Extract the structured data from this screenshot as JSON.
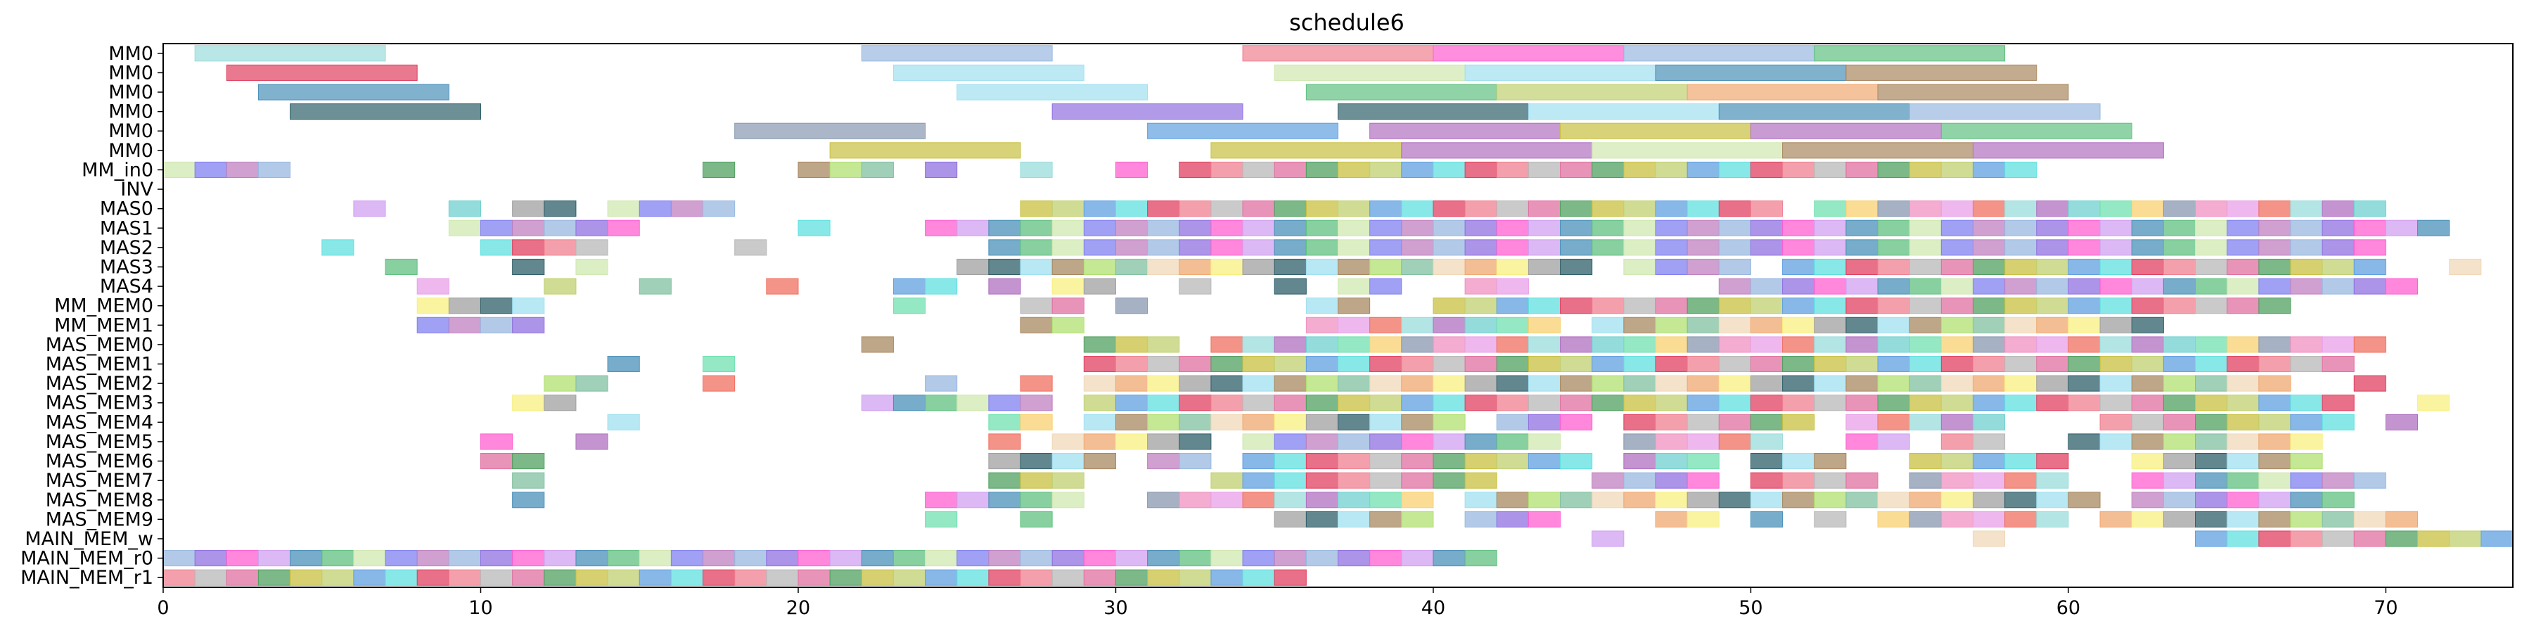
{
  "chart_data": {
    "type": "gantt",
    "title": "schedule6",
    "xlabel": "",
    "ylabel": "",
    "xlim": [
      0,
      74
    ],
    "xticks": [
      0,
      10,
      20,
      30,
      40,
      50,
      60,
      70
    ],
    "rows": [
      "MM0",
      "MM0",
      "MM0",
      "MM0",
      "MM0",
      "MM0",
      "MM_in0",
      "INV",
      "MAS0",
      "MAS1",
      "MAS2",
      "MAS3",
      "MAS4",
      "MM_MEM0",
      "MM_MEM1",
      "MAS_MEM0",
      "MAS_MEM1",
      "MAS_MEM2",
      "MAS_MEM3",
      "MAS_MEM4",
      "MAS_MEM5",
      "MAS_MEM6",
      "MAS_MEM7",
      "MAS_MEM8",
      "MAS_MEM9",
      "MAIN_MEM_w",
      "MAIN_MEM_r0",
      "MAIN_MEM_r1"
    ],
    "palette": [
      "#9bdcdc",
      "#e04060",
      "#4a90b8",
      "#2f5f6a",
      "#8898b0",
      "#c8c040",
      "#98b8e0",
      "#f0d8b8",
      "#b070c0",
      "#f08090",
      "#60c080",
      "#a0e0f0",
      "#f090c0",
      "#c0d070",
      "#9070e0",
      "#f0a870",
      "#70d0d0",
      "#b8b8b8",
      "#d0e8b0",
      "#a88860",
      "#e8a0e8",
      "#60a0e0",
      "#ff60d0",
      "#f8f080"
    ],
    "bars": [
      {
        "row": 0,
        "start": 1,
        "end": 7,
        "c": 0
      },
      {
        "row": 0,
        "start": 22,
        "end": 28,
        "c": 6
      },
      {
        "row": 0,
        "start": 34,
        "end": 40,
        "c": 9
      },
      {
        "row": 0,
        "start": 40,
        "end": 46,
        "c": 22
      },
      {
        "row": 0,
        "start": 46,
        "end": 52,
        "c": 6
      },
      {
        "row": 0,
        "start": 52,
        "end": 58,
        "c": 10
      },
      {
        "row": 1,
        "start": 2,
        "end": 8,
        "c": 1
      },
      {
        "row": 1,
        "start": 23,
        "end": 29,
        "c": 11
      },
      {
        "row": 1,
        "start": 35,
        "end": 41,
        "c": 18
      },
      {
        "row": 1,
        "start": 41,
        "end": 47,
        "c": 11
      },
      {
        "row": 1,
        "start": 47,
        "end": 53,
        "c": 2
      },
      {
        "row": 1,
        "start": 53,
        "end": 59,
        "c": 19
      },
      {
        "row": 2,
        "start": 3,
        "end": 9,
        "c": 2
      },
      {
        "row": 2,
        "start": 25,
        "end": 31,
        "c": 11
      },
      {
        "row": 2,
        "start": 36,
        "end": 42,
        "c": 10
      },
      {
        "row": 2,
        "start": 42,
        "end": 48,
        "c": 13
      },
      {
        "row": 2,
        "start": 48,
        "end": 54,
        "c": 15
      },
      {
        "row": 2,
        "start": 54,
        "end": 60,
        "c": 19
      },
      {
        "row": 3,
        "start": 4,
        "end": 10,
        "c": 3
      },
      {
        "row": 3,
        "start": 28,
        "end": 34,
        "c": 14
      },
      {
        "row": 3,
        "start": 37,
        "end": 43,
        "c": 3
      },
      {
        "row": 3,
        "start": 43,
        "end": 49,
        "c": 11
      },
      {
        "row": 3,
        "start": 49,
        "end": 55,
        "c": 2
      },
      {
        "row": 3,
        "start": 55,
        "end": 61,
        "c": 6
      },
      {
        "row": 4,
        "start": 18,
        "end": 24,
        "c": 4
      },
      {
        "row": 4,
        "start": 31,
        "end": 37,
        "c": 21
      },
      {
        "row": 4,
        "start": 38,
        "end": 44,
        "c": 8
      },
      {
        "row": 4,
        "start": 44,
        "end": 50,
        "c": 5
      },
      {
        "row": 4,
        "start": 50,
        "end": 56,
        "c": 8
      },
      {
        "row": 4,
        "start": 56,
        "end": 62,
        "c": 10
      },
      {
        "row": 5,
        "start": 21,
        "end": 27,
        "c": 5
      },
      {
        "row": 5,
        "start": 33,
        "end": 39,
        "c": 5
      },
      {
        "row": 5,
        "start": 39,
        "end": 45,
        "c": 8
      },
      {
        "row": 5,
        "start": 45,
        "end": 51,
        "c": 18
      },
      {
        "row": 5,
        "start": 51,
        "end": 57,
        "c": 19
      },
      {
        "row": 5,
        "start": 57,
        "end": 63,
        "c": 8
      }
    ],
    "dense_rows": [
      {
        "row": 6,
        "cells": [
          0,
          1,
          2,
          3,
          17,
          20,
          21,
          22,
          24,
          27,
          30,
          32,
          33,
          34,
          35,
          36,
          37,
          38,
          39,
          40,
          41,
          42,
          43,
          44,
          45,
          46,
          47,
          48,
          49,
          50,
          51,
          52,
          53,
          54,
          55,
          56,
          57,
          58
        ]
      },
      {
        "row": 8,
        "cells": [
          6,
          9,
          11,
          12,
          14,
          15,
          16,
          17,
          27,
          28,
          29,
          30,
          31,
          32,
          33,
          34,
          35,
          36,
          37,
          38,
          39,
          40,
          41,
          42,
          43,
          44,
          45,
          46,
          47,
          48,
          49,
          50,
          52,
          53,
          54,
          55,
          56,
          57,
          58,
          59,
          60,
          61,
          62,
          63,
          64,
          65,
          66,
          67,
          68,
          69
        ]
      },
      {
        "row": 9,
        "cells": [
          9,
          10,
          11,
          12,
          13,
          14,
          20,
          24,
          25,
          26,
          27,
          28,
          29,
          30,
          31,
          32,
          33,
          34,
          35,
          36,
          37,
          38,
          39,
          40,
          41,
          42,
          43,
          44,
          45,
          46,
          47,
          48,
          49,
          50,
          51,
          52,
          53,
          54,
          55,
          56,
          57,
          58,
          59,
          60,
          61,
          62,
          63,
          64,
          65,
          66,
          67,
          68,
          69,
          70,
          71
        ]
      },
      {
        "row": 10,
        "cells": [
          5,
          10,
          11,
          12,
          13,
          18,
          26,
          27,
          28,
          29,
          30,
          31,
          32,
          33,
          34,
          35,
          36,
          37,
          38,
          39,
          40,
          41,
          42,
          43,
          44,
          45,
          46,
          47,
          48,
          49,
          50,
          51,
          52,
          53,
          54,
          55,
          56,
          57,
          58,
          59,
          60,
          61,
          62,
          63,
          64,
          65,
          66,
          67,
          68,
          69
        ]
      },
      {
        "row": 11,
        "cells": [
          7,
          11,
          13,
          25,
          26,
          27,
          28,
          29,
          30,
          31,
          32,
          33,
          34,
          35,
          36,
          37,
          38,
          39,
          40,
          41,
          42,
          43,
          44,
          46,
          47,
          48,
          49,
          51,
          52,
          53,
          54,
          55,
          56,
          57,
          58,
          59,
          60,
          61,
          62,
          63,
          64,
          65,
          66,
          67,
          68,
          69,
          72
        ]
      },
      {
        "row": 12,
        "cells": [
          8,
          12,
          15,
          19,
          23,
          24,
          26,
          28,
          29,
          32,
          35,
          37,
          38,
          41,
          42,
          49,
          50,
          51,
          52,
          53,
          54,
          55,
          56,
          57,
          58,
          59,
          60,
          61,
          62,
          63,
          64,
          65,
          66,
          67,
          68,
          69,
          70
        ]
      },
      {
        "row": 13,
        "cells": [
          8,
          9,
          10,
          11,
          23,
          27,
          28,
          30,
          36,
          37,
          40,
          41,
          42,
          43,
          44,
          45,
          46,
          47,
          48,
          49,
          50,
          51,
          52,
          53,
          54,
          55,
          56,
          57,
          58,
          59,
          60,
          61,
          62,
          63,
          64,
          65,
          66
        ]
      },
      {
        "row": 14,
        "cells": [
          8,
          9,
          10,
          11,
          27,
          28,
          36,
          37,
          38,
          39,
          40,
          41,
          42,
          43,
          45,
          46,
          47,
          48,
          49,
          50,
          51,
          52,
          53,
          54,
          55,
          56,
          57,
          58,
          59,
          60,
          61,
          62
        ]
      },
      {
        "row": 15,
        "cells": [
          22,
          29,
          30,
          31,
          33,
          34,
          35,
          36,
          37,
          38,
          39,
          40,
          41,
          42,
          43,
          44,
          45,
          46,
          47,
          48,
          49,
          50,
          51,
          52,
          53,
          54,
          55,
          56,
          57,
          58,
          59,
          60,
          61,
          62,
          63,
          64,
          65,
          66,
          67,
          68,
          69
        ]
      },
      {
        "row": 16,
        "cells": [
          14,
          17,
          29,
          30,
          31,
          32,
          33,
          34,
          35,
          36,
          37,
          38,
          39,
          40,
          41,
          42,
          43,
          44,
          45,
          46,
          47,
          48,
          49,
          50,
          51,
          52,
          53,
          54,
          55,
          56,
          57,
          58,
          59,
          60,
          61,
          62,
          63,
          64,
          65,
          66,
          67,
          68
        ]
      },
      {
        "row": 17,
        "cells": [
          12,
          13,
          17,
          24,
          27,
          29,
          30,
          31,
          32,
          33,
          34,
          35,
          36,
          37,
          38,
          39,
          40,
          41,
          42,
          43,
          44,
          45,
          46,
          47,
          48,
          49,
          50,
          51,
          52,
          53,
          54,
          55,
          56,
          57,
          58,
          59,
          60,
          61,
          62,
          63,
          64,
          65,
          66,
          69
        ]
      },
      {
        "row": 18,
        "cells": [
          11,
          12,
          22,
          23,
          24,
          25,
          26,
          27,
          29,
          30,
          31,
          32,
          33,
          34,
          35,
          36,
          37,
          38,
          39,
          40,
          41,
          42,
          43,
          44,
          45,
          46,
          47,
          48,
          49,
          50,
          51,
          52,
          53,
          54,
          55,
          56,
          57,
          58,
          59,
          60,
          61,
          62,
          63,
          64,
          65,
          66,
          67,
          68,
          71
        ]
      },
      {
        "row": 19,
        "cells": [
          14,
          26,
          27,
          29,
          30,
          31,
          32,
          33,
          34,
          35,
          36,
          37,
          38,
          39,
          40,
          42,
          43,
          44,
          46,
          47,
          48,
          49,
          50,
          51,
          53,
          54,
          55,
          56,
          57,
          61,
          62,
          63,
          64,
          65,
          66,
          67,
          68,
          70
        ]
      },
      {
        "row": 20,
        "cells": [
          10,
          13,
          26,
          28,
          29,
          30,
          31,
          32,
          34,
          35,
          36,
          37,
          38,
          39,
          40,
          41,
          42,
          43,
          46,
          47,
          48,
          49,
          50,
          53,
          54,
          56,
          57,
          60,
          61,
          62,
          63,
          64,
          65,
          66,
          67
        ]
      },
      {
        "row": 21,
        "cells": [
          10,
          11,
          26,
          27,
          28,
          29,
          31,
          32,
          34,
          35,
          36,
          37,
          38,
          39,
          40,
          41,
          42,
          43,
          44,
          46,
          47,
          48,
          50,
          51,
          52,
          55,
          56,
          57,
          58,
          59,
          62,
          63,
          64,
          65,
          66,
          67
        ]
      },
      {
        "row": 22,
        "cells": [
          11,
          26,
          27,
          28,
          33,
          34,
          35,
          36,
          37,
          38,
          39,
          40,
          41,
          45,
          46,
          47,
          48,
          50,
          51,
          52,
          53,
          55,
          56,
          57,
          58,
          59,
          62,
          63,
          64,
          65,
          66,
          67,
          68,
          69
        ]
      },
      {
        "row": 23,
        "cells": [
          11,
          24,
          25,
          26,
          27,
          28,
          31,
          32,
          33,
          34,
          35,
          36,
          37,
          38,
          39,
          41,
          42,
          43,
          44,
          45,
          46,
          47,
          48,
          49,
          50,
          51,
          52,
          53,
          54,
          55,
          56,
          57,
          58,
          59,
          60,
          62,
          63,
          64,
          65,
          66,
          67,
          68
        ]
      },
      {
        "row": 24,
        "cells": [
          24,
          27,
          35,
          36,
          37,
          38,
          39,
          41,
          42,
          43,
          47,
          48,
          50,
          52,
          54,
          55,
          56,
          57,
          58,
          59,
          61,
          62,
          63,
          64,
          65,
          66,
          67,
          68,
          69,
          70
        ]
      },
      {
        "row": 25,
        "cells": [
          45,
          57,
          64,
          65,
          66,
          67,
          68,
          69,
          70,
          71,
          72,
          73
        ]
      },
      {
        "row": 26,
        "cells": [
          0,
          1,
          2,
          3,
          4,
          5,
          6,
          7,
          8,
          9,
          10,
          11,
          12,
          13,
          14,
          15,
          16,
          17,
          18,
          19,
          20,
          21,
          22,
          23,
          24,
          25,
          26,
          27,
          28,
          29,
          30,
          31,
          32,
          33,
          34,
          35,
          36,
          37,
          38,
          39,
          40,
          41
        ]
      },
      {
        "row": 27,
        "cells": [
          0,
          1,
          2,
          3,
          4,
          5,
          6,
          7,
          8,
          9,
          10,
          11,
          12,
          13,
          14,
          15,
          16,
          17,
          18,
          19,
          20,
          21,
          22,
          23,
          24,
          25,
          26,
          27,
          28,
          29,
          30,
          31,
          32,
          33,
          34,
          35
        ]
      }
    ]
  }
}
